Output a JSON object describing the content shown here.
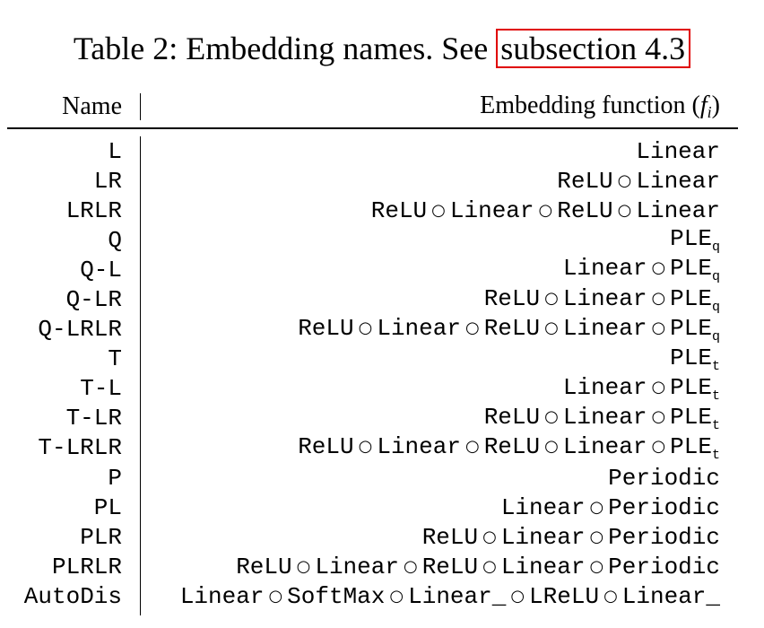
{
  "caption": {
    "prefix": "Table 2: Embedding names. See ",
    "ref": "subsection 4.3"
  },
  "header": {
    "name": "Name",
    "func_text": "Embedding function (",
    "func_symbol": "f",
    "func_sub": "i",
    "func_close": ")"
  },
  "rows": [
    {
      "name": "L",
      "parts": [
        "Linear"
      ],
      "sub": ""
    },
    {
      "name": "LR",
      "parts": [
        "ReLU",
        "Linear"
      ],
      "sub": ""
    },
    {
      "name": "LRLR",
      "parts": [
        "ReLU",
        "Linear",
        "ReLU",
        "Linear"
      ],
      "sub": ""
    },
    {
      "name": "Q",
      "parts": [
        "PLE"
      ],
      "sub": "q"
    },
    {
      "name": "Q-L",
      "parts": [
        "Linear",
        "PLE"
      ],
      "sub": "q"
    },
    {
      "name": "Q-LR",
      "parts": [
        "ReLU",
        "Linear",
        "PLE"
      ],
      "sub": "q"
    },
    {
      "name": "Q-LRLR",
      "parts": [
        "ReLU",
        "Linear",
        "ReLU",
        "Linear",
        "PLE"
      ],
      "sub": "q"
    },
    {
      "name": "T",
      "parts": [
        "PLE"
      ],
      "sub": "t"
    },
    {
      "name": "T-L",
      "parts": [
        "Linear",
        "PLE"
      ],
      "sub": "t"
    },
    {
      "name": "T-LR",
      "parts": [
        "ReLU",
        "Linear",
        "PLE"
      ],
      "sub": "t"
    },
    {
      "name": "T-LRLR",
      "parts": [
        "ReLU",
        "Linear",
        "ReLU",
        "Linear",
        "PLE"
      ],
      "sub": "t"
    },
    {
      "name": "P",
      "parts": [
        "Periodic"
      ],
      "sub": ""
    },
    {
      "name": "PL",
      "parts": [
        "Linear",
        "Periodic"
      ],
      "sub": ""
    },
    {
      "name": "PLR",
      "parts": [
        "ReLU",
        "Linear",
        "Periodic"
      ],
      "sub": ""
    },
    {
      "name": "PLRLR",
      "parts": [
        "ReLU",
        "Linear",
        "ReLU",
        "Linear",
        "Periodic"
      ],
      "sub": ""
    },
    {
      "name": "AutoDis",
      "parts": [
        "Linear",
        "SoftMax",
        "Linear_",
        "LReLU",
        "Linear_"
      ],
      "sub": ""
    }
  ],
  "composition_symbol": "○",
  "colors": {
    "text": "#000000",
    "reference_box": "#e00000"
  }
}
